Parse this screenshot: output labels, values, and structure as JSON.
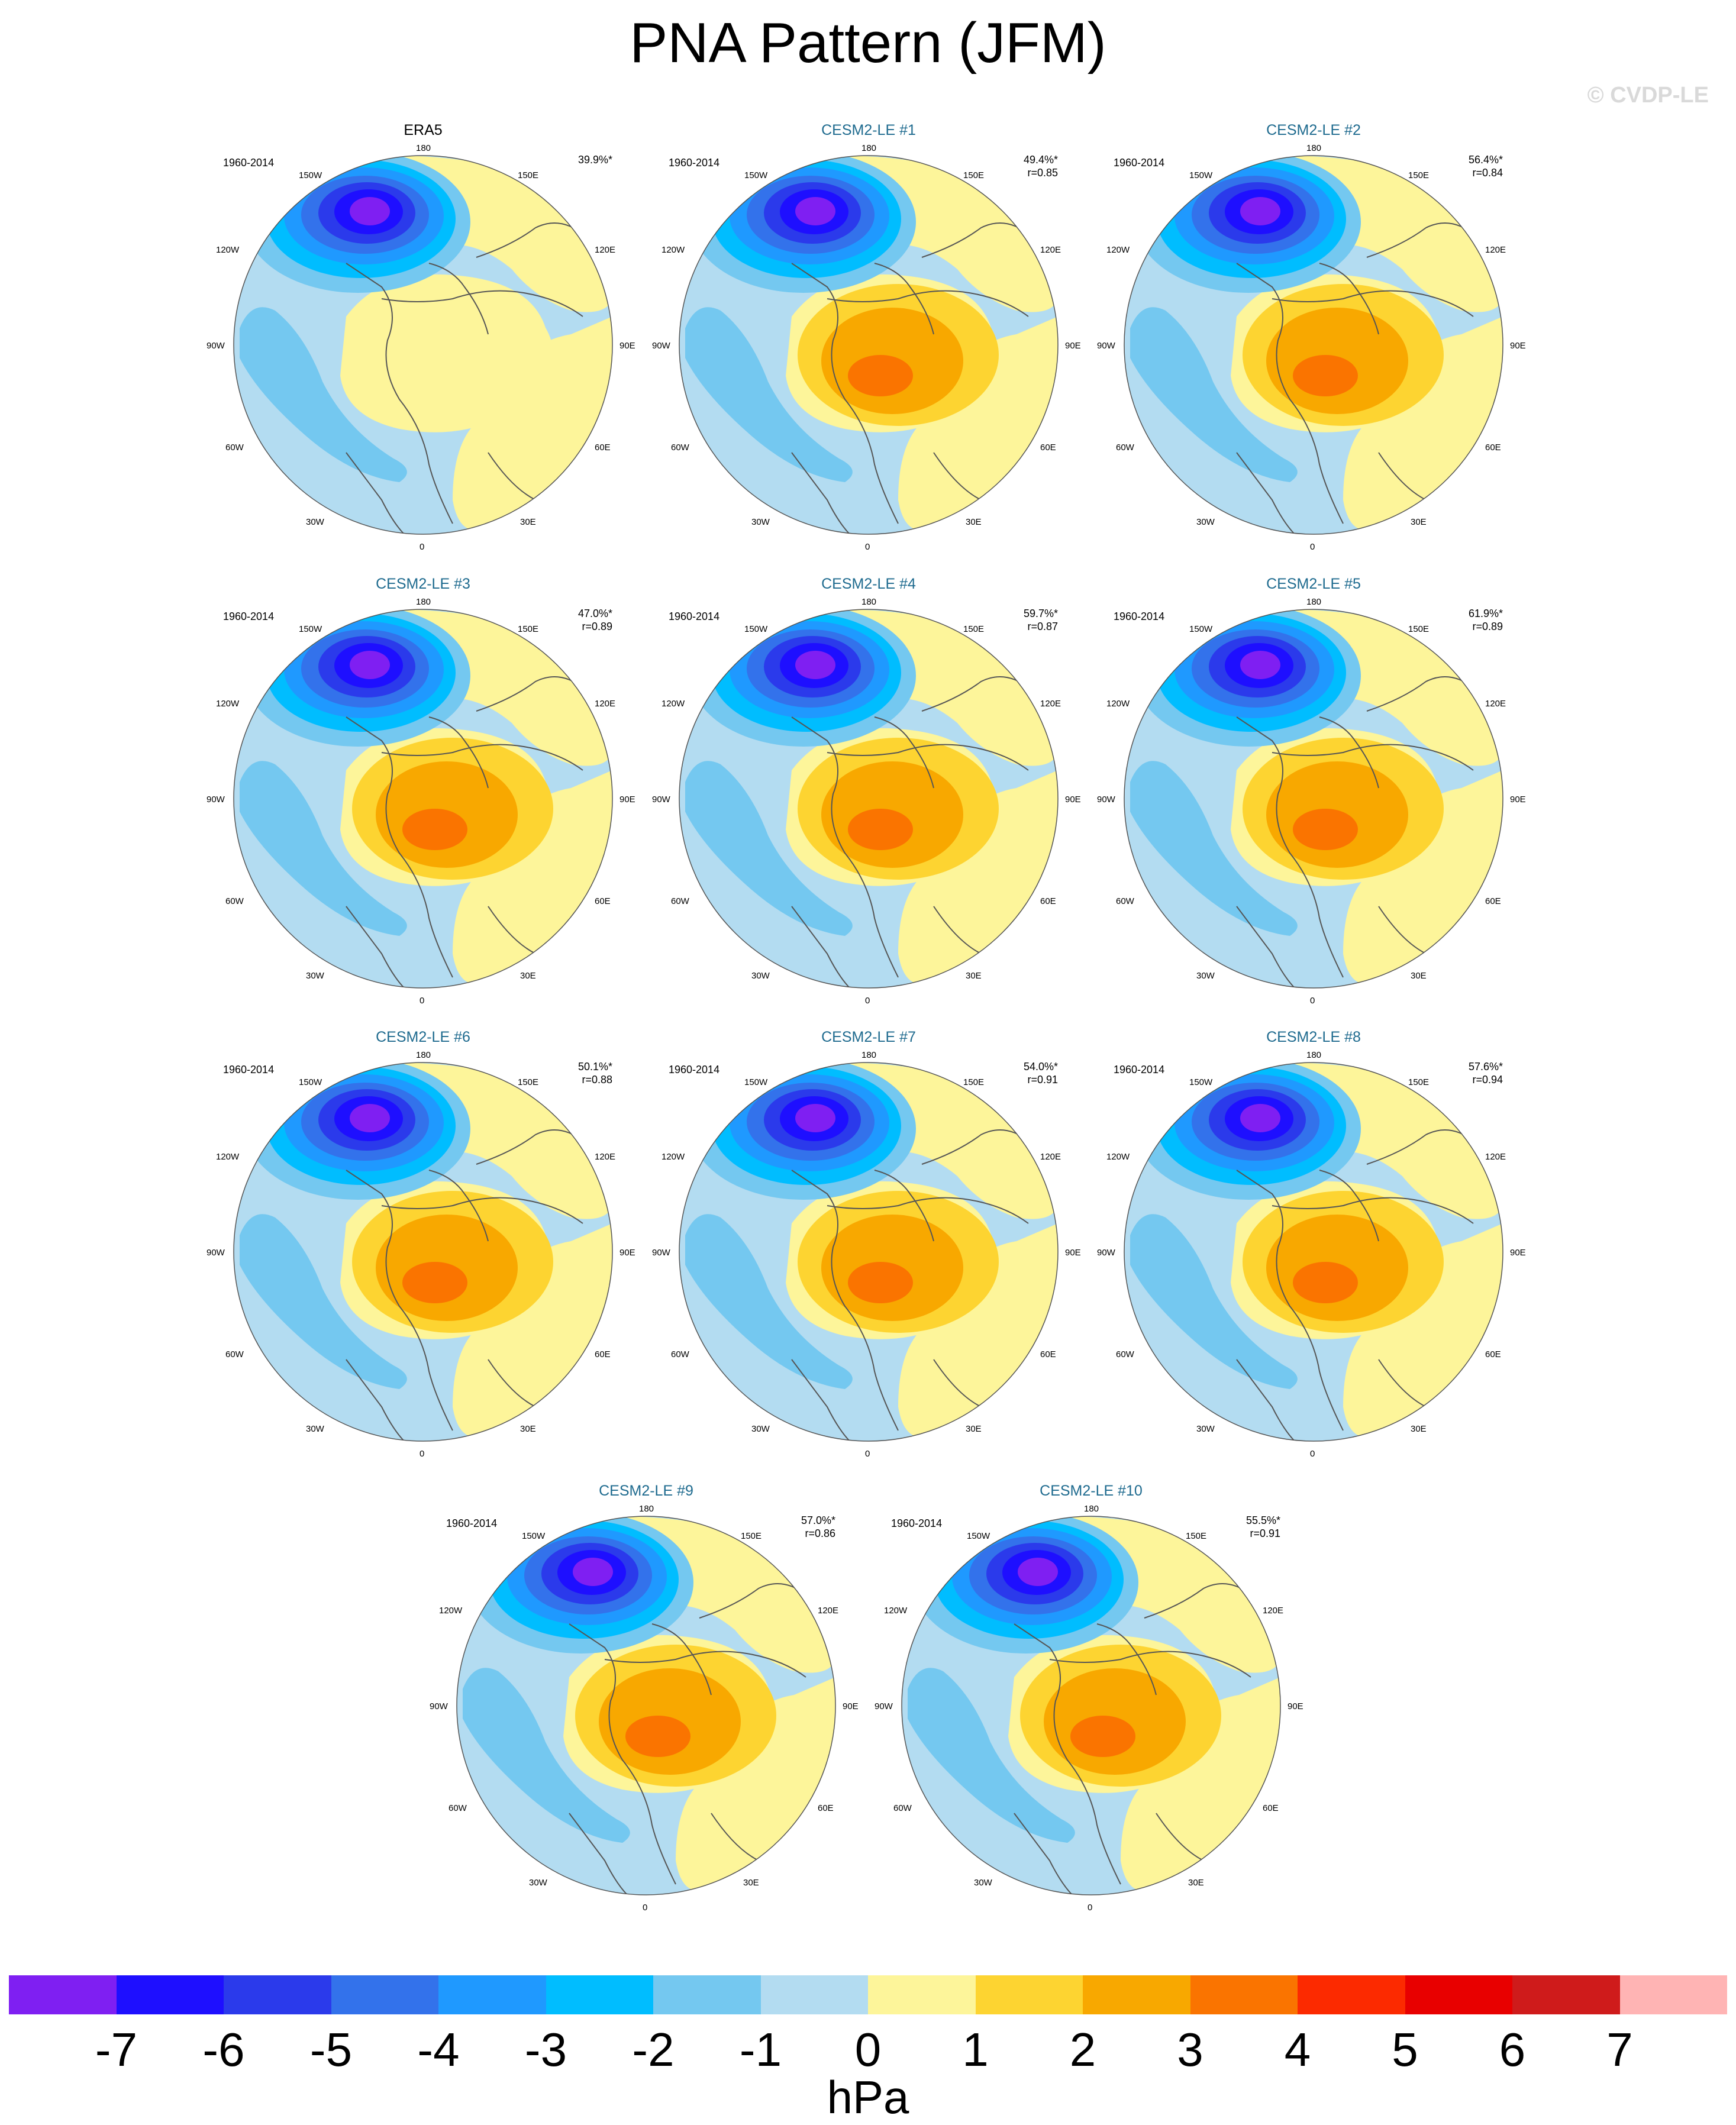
{
  "title": "PNA Pattern (JFM)",
  "watermark": "© CVDP-LE",
  "period": "1960-2014",
  "lon_labels": {
    "l180": "180",
    "l150e": "150E",
    "l120e": "120E",
    "l90e": "90E",
    "l60e": "60E",
    "l30e": "30E",
    "l0": "0",
    "l30w": "30W",
    "l60w": "60W",
    "l90w": "90W",
    "l120w": "120W",
    "l150w": "150W"
  },
  "colors": {
    "ocean_blue_light": "#b3dcf1",
    "continent_line": "#555555"
  },
  "panels": [
    {
      "name": "ERA5",
      "pct": "39.9%*",
      "r": ""
    },
    {
      "name": "CESM2-LE #1",
      "pct": "49.4%*",
      "r": "r=0.85"
    },
    {
      "name": "CESM2-LE #2",
      "pct": "56.4%*",
      "r": "r=0.84"
    },
    {
      "name": "CESM2-LE #3",
      "pct": "47.0%*",
      "r": "r=0.89"
    },
    {
      "name": "CESM2-LE #4",
      "pct": "59.7%*",
      "r": "r=0.87"
    },
    {
      "name": "CESM2-LE #5",
      "pct": "61.9%*",
      "r": "r=0.89"
    },
    {
      "name": "CESM2-LE #6",
      "pct": "50.1%*",
      "r": "r=0.88"
    },
    {
      "name": "CESM2-LE #7",
      "pct": "54.0%*",
      "r": "r=0.91"
    },
    {
      "name": "CESM2-LE #8",
      "pct": "57.6%*",
      "r": "r=0.94"
    },
    {
      "name": "CESM2-LE #9",
      "pct": "57.0%*",
      "r": "r=0.86"
    },
    {
      "name": "CESM2-LE #10",
      "pct": "55.5%*",
      "r": "r=0.91"
    }
  ],
  "colorbar": {
    "colors": [
      "#7f1ff2",
      "#1e0fff",
      "#2b3aeb",
      "#3372eb",
      "#1f99ff",
      "#00bdff",
      "#74c8f0",
      "#b3dcf1",
      "#fdf59a",
      "#fdd431",
      "#f8a800",
      "#fa7400",
      "#fc2a00",
      "#e80000",
      "#cf1b1b",
      "#ffb4b4"
    ],
    "ticks": [
      "-7",
      "-6",
      "-5",
      "-4",
      "-3",
      "-2",
      "-1",
      "0",
      "1",
      "2",
      "3",
      "4",
      "5",
      "6",
      "7"
    ],
    "unit": "hPa"
  }
}
